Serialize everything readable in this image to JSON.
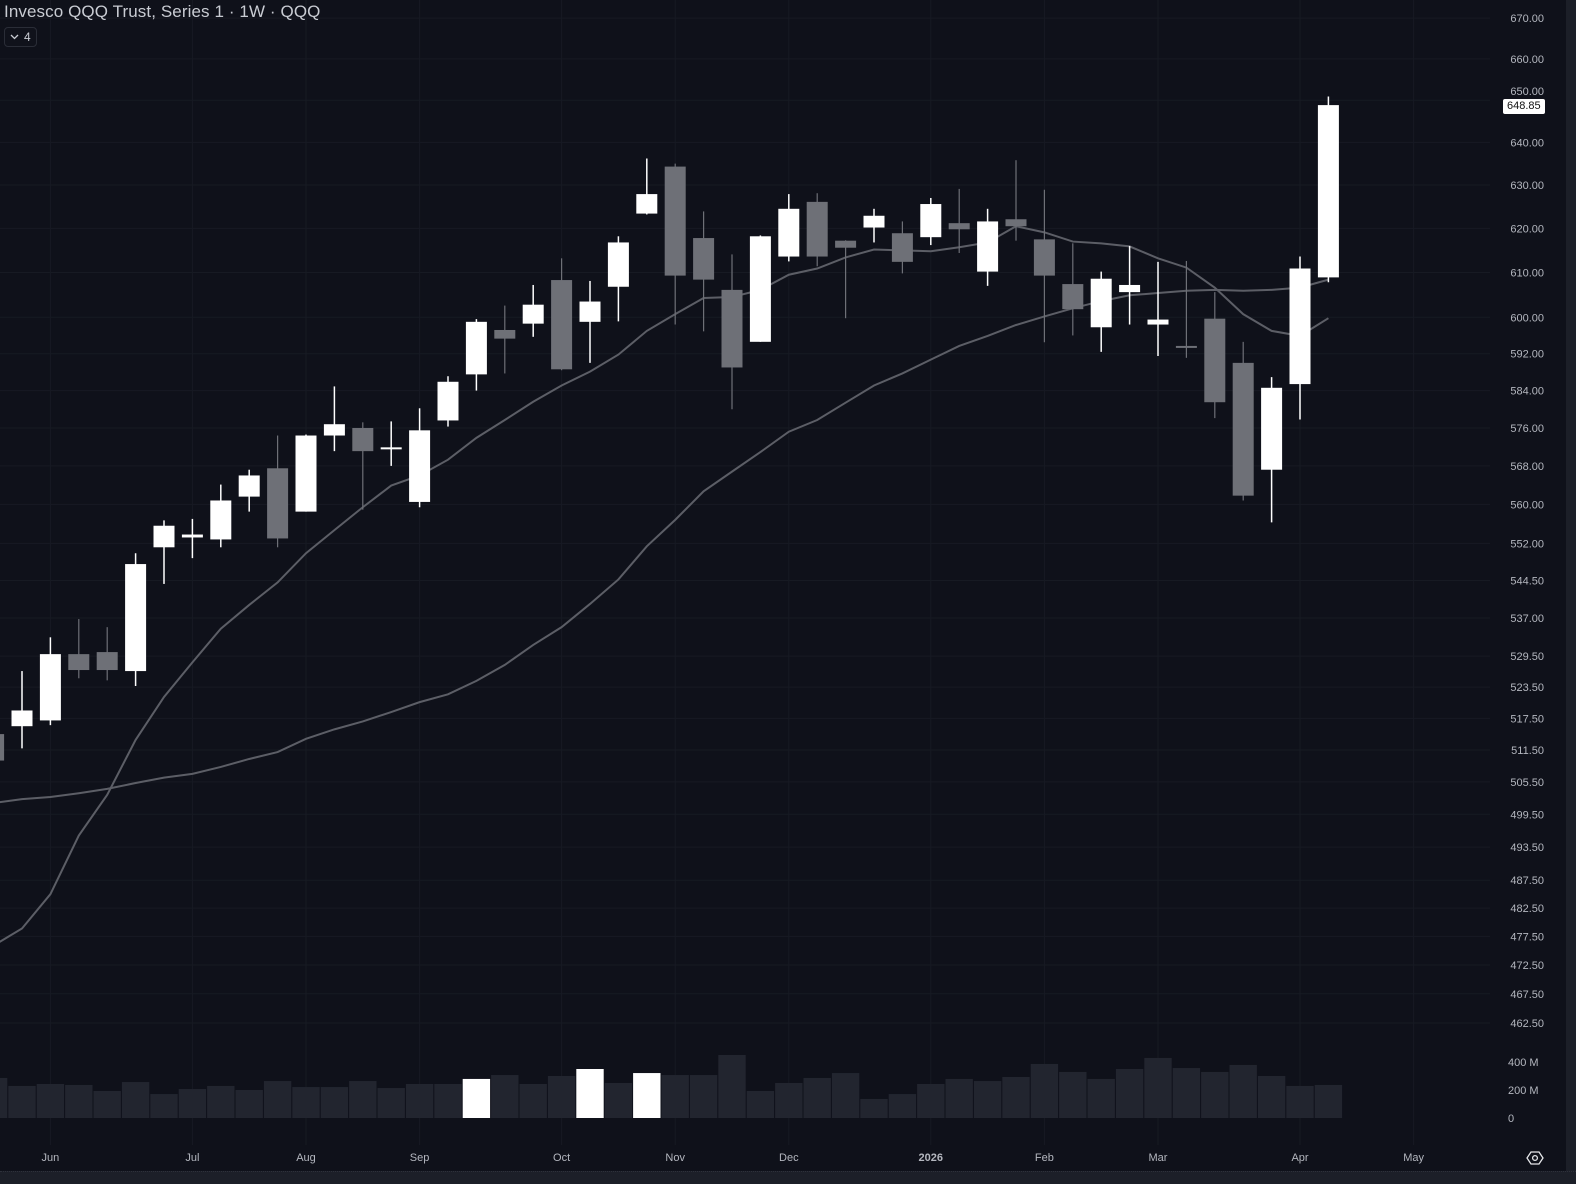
{
  "header": {
    "title": "Invesco QQQ Trust, Series 1 · 1W · QQQ",
    "indicator_count": "4",
    "collapse_icon": "chevron-down-icon"
  },
  "price_tag": "648.85",
  "settings_icon": "settings-icon",
  "colors": {
    "background": "#0f111a",
    "up": "#ffffff",
    "down": "#6e7077",
    "volume": "#22252f",
    "volume_highlight": "#ffffff",
    "ma": "#5c5e66",
    "grid": "#171a23"
  },
  "chart_data": {
    "type": "candlestick",
    "title": "Invesco QQQ Trust, Series 1 · 1W · QQQ",
    "y_scale": "log",
    "ylim": [
      459.6,
      674.5
    ],
    "grid": true,
    "x": [
      "2025-05-19",
      "2025-05-26",
      "2025-06-02",
      "2025-06-09",
      "2025-06-16",
      "2025-06-23",
      "2025-06-30",
      "2025-07-07",
      "2025-07-14",
      "2025-07-21",
      "2025-07-28",
      "2025-08-04",
      "2025-08-11",
      "2025-08-18",
      "2025-08-25",
      "2025-09-01",
      "2025-09-08",
      "2025-09-15",
      "2025-09-22",
      "2025-09-29",
      "2025-10-06",
      "2025-10-13",
      "2025-10-20",
      "2025-10-27",
      "2025-11-03",
      "2025-11-10",
      "2025-11-17",
      "2025-11-24",
      "2025-12-01",
      "2025-12-08",
      "2025-12-15",
      "2025-12-22",
      "2025-12-29",
      "2026-01-05",
      "2026-01-12",
      "2026-01-19",
      "2026-01-26",
      "2026-02-02",
      "2026-02-09",
      "2026-02-16",
      "2026-02-23",
      "2026-03-02",
      "2026-03-09",
      "2026-03-16",
      "2026-03-23",
      "2026-03-30",
      "2026-04-06",
      "2026-04-13"
    ],
    "ohlc": [
      [
        514.5,
        515,
        509,
        509.5
      ],
      [
        516,
        526.6,
        511.8,
        519
      ],
      [
        517.1,
        533.2,
        516.2,
        529.9
      ],
      [
        529.9,
        536.8,
        525.2,
        526.8
      ],
      [
        530.3,
        535.2,
        524.8,
        526.8
      ],
      [
        526.6,
        550,
        523.7,
        547.8
      ],
      [
        551.2,
        556.7,
        543.8,
        555.6
      ],
      [
        553.2,
        557,
        549,
        553.8
      ],
      [
        552.8,
        564.1,
        551.2,
        560.8
      ],
      [
        561.6,
        567.2,
        558.5,
        566
      ],
      [
        567.5,
        574.4,
        551.2,
        553
      ],
      [
        558.5,
        574.6,
        558.5,
        574.4
      ],
      [
        574.4,
        584.9,
        571.1,
        576.8
      ],
      [
        576,
        577.2,
        558.9,
        571.1
      ],
      [
        571.5,
        577.4,
        568,
        571.9
      ],
      [
        560.5,
        580.2,
        559.4,
        575.5
      ],
      [
        577.6,
        587.1,
        576.3,
        585.9
      ],
      [
        587.5,
        599.6,
        584,
        599
      ],
      [
        597.2,
        602.6,
        587.7,
        595.3
      ],
      [
        598.6,
        607.2,
        595.7,
        602.8
      ],
      [
        608.3,
        613.2,
        588.4,
        588.6
      ],
      [
        599,
        608.1,
        590,
        603.5
      ],
      [
        606.8,
        618.2,
        599.1,
        616.8
      ],
      [
        623.4,
        636.2,
        623.2,
        627.9
      ],
      [
        634.3,
        635,
        598.4,
        609.3
      ],
      [
        617.8,
        623.9,
        596.9,
        608.4
      ],
      [
        606.1,
        614.1,
        580,
        589
      ],
      [
        594.6,
        618.4,
        594.6,
        618.2
      ],
      [
        613.6,
        627.9,
        612.5,
        624.5
      ],
      [
        626.1,
        628.1,
        611.4,
        613.6
      ],
      [
        617.2,
        617.3,
        599.8,
        615.6
      ],
      [
        620.2,
        624.5,
        616.8,
        622.9
      ],
      [
        618.9,
        621.6,
        609.8,
        612.4
      ],
      [
        618,
        627,
        616.2,
        625.6
      ],
      [
        621.2,
        629.1,
        614.4,
        619.8
      ],
      [
        610.2,
        624.5,
        607,
        621.6
      ],
      [
        622.1,
        635.8,
        617.2,
        620.5
      ],
      [
        617.5,
        628.9,
        594.5,
        609.3
      ],
      [
        607.4,
        616.6,
        596,
        601.8
      ],
      [
        597.8,
        610.2,
        592.4,
        608.6
      ],
      [
        605.6,
        616,
        598.4,
        607.2
      ],
      [
        598.4,
        612.4,
        591.5,
        599.5
      ],
      [
        593.7,
        612.6,
        591.1,
        593.3
      ],
      [
        599.7,
        605.6,
        578.1,
        581.5
      ],
      [
        590,
        594.6,
        560.8,
        561.8
      ],
      [
        567.2,
        586.9,
        556.3,
        584.6
      ],
      [
        585.4,
        613.6,
        577.8,
        610.9
      ],
      [
        608.9,
        650.9,
        607.8,
        648.85
      ]
    ],
    "moving_averages": [
      {
        "values": [
          475.9,
          478.9,
          485,
          495.6,
          503.1,
          513.4,
          521.6,
          528.3,
          534.9,
          539.6,
          544.1,
          550,
          554.7,
          559.4,
          563.9,
          566,
          569.3,
          573.9,
          577.7,
          581.6,
          585.1,
          588.1,
          591.8,
          597,
          600.7,
          604.3,
          604.5,
          606.1,
          609.5,
          610.9,
          613.4,
          615.2,
          615,
          614.8,
          615.7,
          616.8,
          620.5,
          619.1,
          617,
          616.6,
          615.9,
          613.2,
          611.1,
          606.6,
          600.7,
          597,
          595.9,
          599.8
        ]
      },
      {
        "values": [
          501.6,
          502.3,
          502.7,
          503.4,
          504.2,
          505.3,
          506.3,
          507,
          508.3,
          509.8,
          511.1,
          513.6,
          515.4,
          516.9,
          518.7,
          520.6,
          522.1,
          524.7,
          527.8,
          531.7,
          535.2,
          539.8,
          544.7,
          551.4,
          556.8,
          562.7,
          566.8,
          570.9,
          575.2,
          577.7,
          581.4,
          585.1,
          587.7,
          590.7,
          593.7,
          595.9,
          598.3,
          600.2,
          602,
          603.6,
          604.9,
          605.4,
          605.9,
          606.1,
          605.9,
          606.1,
          606.6,
          608.4
        ]
      }
    ],
    "volume_millions": [
      286,
      229,
      243,
      236,
      193,
      257,
      171,
      207,
      229,
      200,
      264,
      221,
      221,
      264,
      214,
      243,
      243,
      279,
      307,
      243,
      300,
      350,
      250,
      321,
      307,
      307,
      450,
      193,
      250,
      286,
      321,
      136,
      171,
      243,
      279,
      264,
      293,
      386,
      329,
      279,
      350,
      429,
      357,
      329,
      379,
      300,
      229,
      236
    ],
    "volume_highlighted_indices": [
      17,
      21,
      23
    ],
    "y_ticks": [
      "670.00",
      "660.00",
      "650.00",
      "640.00",
      "630.00",
      "620.00",
      "610.00",
      "600.00",
      "592.00",
      "584.00",
      "576.00",
      "568.00",
      "560.00",
      "552.00",
      "544.50",
      "537.00",
      "529.50",
      "523.50",
      "517.50",
      "511.50",
      "505.50",
      "499.50",
      "493.50",
      "487.50",
      "482.50",
      "477.50",
      "472.50",
      "467.50",
      "462.50"
    ],
    "volume_ticks": [
      {
        "label": "400 M",
        "value": 400
      },
      {
        "label": "200 M",
        "value": 200
      },
      {
        "label": "0",
        "value": 0
      }
    ],
    "x_ticks": [
      {
        "label": "Jun",
        "date": "2025-06-02",
        "bold": false
      },
      {
        "label": "Jul",
        "date": "2025-07-07",
        "bold": false
      },
      {
        "label": "Aug",
        "date": "2025-08-04",
        "bold": false
      },
      {
        "label": "Sep",
        "date": "2025-09-01",
        "bold": false
      },
      {
        "label": "Oct",
        "date": "2025-10-06",
        "bold": false
      },
      {
        "label": "Nov",
        "date": "2025-11-03",
        "bold": false
      },
      {
        "label": "Dec",
        "date": "2025-12-01",
        "bold": false
      },
      {
        "label": "2026",
        "date": "2026-01-05",
        "bold": true
      },
      {
        "label": "Feb",
        "date": "2026-02-02",
        "bold": false
      },
      {
        "label": "Mar",
        "date": "2026-03-02",
        "bold": false
      },
      {
        "label": "Apr",
        "date": "2026-04-06",
        "bold": false
      },
      {
        "label": "May",
        "date": "2026-05-04",
        "bold": false
      }
    ]
  }
}
